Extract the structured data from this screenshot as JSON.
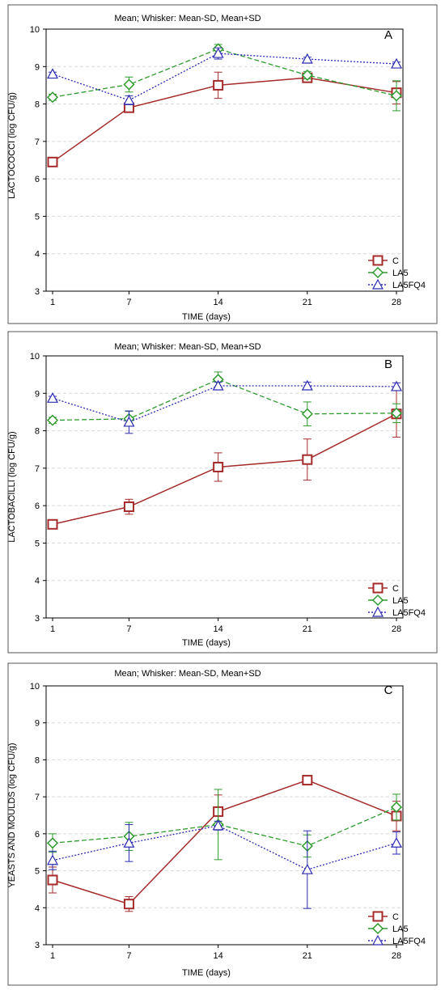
{
  "chart_data": [
    {
      "type": "line",
      "panel_label": "A",
      "title": "Mean;  Whisker: Mean-SD, Mean+SD",
      "xlabel": "TIME (days)",
      "ylabel": "LACTOCOCCI (log CFU/g)",
      "x": [
        1,
        7,
        14,
        21,
        28
      ],
      "x_ticks": [
        "1",
        "7",
        "14",
        "21",
        "28"
      ],
      "ylim": [
        3,
        10
      ],
      "y_ticks": [
        "3",
        "4",
        "5",
        "6",
        "7",
        "8",
        "9",
        "10"
      ],
      "grid": true,
      "legend_position": "bottom-right",
      "series": [
        {
          "name": "C",
          "color": "#A52A2A",
          "marker": "square",
          "dash": "solid",
          "values": [
            6.45,
            7.9,
            8.5,
            8.7,
            8.3
          ],
          "sd": [
            0.1,
            0.05,
            0.35,
            0.12,
            0.3
          ]
        },
        {
          "name": "LA5",
          "color": "#2E9B2E",
          "marker": "diamond",
          "dash": "dashed",
          "values": [
            8.18,
            8.52,
            9.47,
            8.77,
            8.22
          ],
          "sd": [
            0.08,
            0.2,
            0.12,
            0.1,
            0.4
          ]
        },
        {
          "name": "LA5FQ4",
          "color": "#2B2BB3",
          "marker": "triangle",
          "dash": "dotted",
          "values": [
            8.8,
            8.1,
            9.35,
            9.2,
            9.07
          ],
          "sd": [
            0.05,
            0.12,
            0.15,
            0.05,
            0.05
          ]
        }
      ]
    },
    {
      "type": "line",
      "panel_label": "B",
      "title": "Mean;  Whisker: Mean-SD, Mean+SD",
      "xlabel": "TIME (days)",
      "ylabel": "LACTOBACILLI (log CFU/g)",
      "x": [
        1,
        7,
        14,
        21,
        28
      ],
      "x_ticks": [
        "1",
        "7",
        "14",
        "21",
        "28"
      ],
      "ylim": [
        3,
        10
      ],
      "y_ticks": [
        "3",
        "4",
        "5",
        "6",
        "7",
        "8",
        "9",
        "10"
      ],
      "grid": true,
      "legend_position": "bottom-right",
      "series": [
        {
          "name": "C",
          "color": "#A52A2A",
          "marker": "square",
          "dash": "solid",
          "values": [
            5.5,
            5.97,
            7.03,
            7.23,
            8.45
          ],
          "sd": [
            0.05,
            0.2,
            0.38,
            0.55,
            0.62
          ]
        },
        {
          "name": "LA5",
          "color": "#2E9B2E",
          "marker": "diamond",
          "dash": "dashed",
          "values": [
            8.28,
            8.32,
            9.37,
            8.45,
            8.47
          ],
          "sd": [
            0.08,
            0.2,
            0.2,
            0.32,
            0.25
          ]
        },
        {
          "name": "LA5FQ4",
          "color": "#2B2BB3",
          "marker": "triangle",
          "dash": "dotted",
          "values": [
            8.87,
            8.23,
            9.2,
            9.2,
            9.18
          ],
          "sd": [
            0.05,
            0.3,
            0.1,
            0.1,
            0.1
          ]
        }
      ]
    },
    {
      "type": "line",
      "panel_label": "C",
      "title": "Mean;  Whisker: Mean-SD, Mean+SD",
      "xlabel": "TIME (days)",
      "ylabel": "YEASTS AND MOULDS (log CFU/g)",
      "x": [
        1,
        7,
        14,
        21,
        28
      ],
      "x_ticks": [
        "1",
        "7",
        "14",
        "21",
        "28"
      ],
      "ylim": [
        3,
        10
      ],
      "y_ticks": [
        "3",
        "4",
        "5",
        "6",
        "7",
        "8",
        "9",
        "10"
      ],
      "grid": true,
      "legend_position": "bottom-right",
      "series": [
        {
          "name": "C",
          "color": "#A52A2A",
          "marker": "square",
          "dash": "solid",
          "values": [
            4.75,
            4.1,
            6.6,
            7.45,
            6.48
          ],
          "sd": [
            0.35,
            0.2,
            0.45,
            0.12,
            0.4
          ]
        },
        {
          "name": "LA5",
          "color": "#2E9B2E",
          "marker": "diamond",
          "dash": "dashed",
          "values": [
            5.75,
            5.93,
            6.25,
            5.67,
            6.72
          ],
          "sd": [
            0.25,
            0.38,
            0.95,
            0.3,
            0.35
          ]
        },
        {
          "name": "LA5FQ4",
          "color": "#2B2BB3",
          "marker": "triangle",
          "dash": "dotted",
          "values": [
            5.28,
            5.75,
            6.22,
            5.03,
            5.75
          ],
          "sd": [
            0.25,
            0.5,
            0.12,
            1.05,
            0.3
          ]
        }
      ]
    }
  ]
}
